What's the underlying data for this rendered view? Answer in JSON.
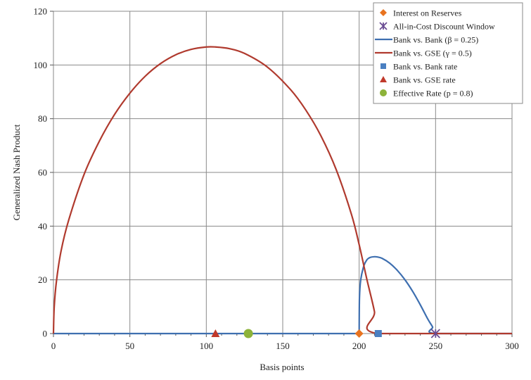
{
  "chart_data": {
    "type": "line",
    "title": "",
    "xlabel": "Basis points",
    "ylabel": "Generalized Nash Product",
    "xlim": [
      0,
      300
    ],
    "ylim": [
      0,
      120
    ],
    "x_ticks": [
      "0",
      "50",
      "100",
      "150",
      "200",
      "250",
      "300"
    ],
    "y_ticks": [
      "0",
      "20",
      "40",
      "60",
      "80",
      "100",
      "120"
    ],
    "grid": true,
    "legend_position": "top-right",
    "series": [
      {
        "name": "Interest on Reserves",
        "kind": "marker",
        "marker": "diamond",
        "color": "#E8731F",
        "points": [
          [
            200,
            0
          ]
        ]
      },
      {
        "name": "All-in-Cost Discount Window",
        "kind": "marker",
        "marker": "star",
        "color": "#6A4C93",
        "points": [
          [
            250,
            0
          ]
        ]
      },
      {
        "name": "Bank vs. Bank (β = 0.25)",
        "kind": "line",
        "color": "#3E6FB0",
        "points": [
          [
            0,
            0
          ],
          [
            200,
            0
          ],
          [
            200,
            0
          ],
          [
            200.2,
            13.2
          ],
          [
            201,
            19.9
          ],
          [
            203,
            25.1
          ],
          [
            205,
            27.4
          ],
          [
            207,
            28.3
          ],
          [
            210,
            28.6
          ],
          [
            212,
            28.5
          ],
          [
            215,
            28.0
          ],
          [
            220,
            26.2
          ],
          [
            225,
            23.5
          ],
          [
            230,
            20.0
          ],
          [
            235,
            15.7
          ],
          [
            240,
            10.7
          ],
          [
            245,
            5.3
          ],
          [
            248,
            2.5
          ],
          [
            250,
            0
          ],
          [
            300,
            0
          ]
        ]
      },
      {
        "name": "Bank vs. GSE (γ = 0.5)",
        "kind": "line",
        "color": "#B03A2E",
        "points": [
          [
            0,
            0
          ],
          [
            0.5,
            9.9
          ],
          [
            2,
            19.7
          ],
          [
            5,
            30.8
          ],
          [
            10,
            42.3
          ],
          [
            20,
            59.2
          ],
          [
            30,
            71.6
          ],
          [
            40,
            81.6
          ],
          [
            50,
            89.5
          ],
          [
            60,
            95.8
          ],
          [
            70,
            100.5
          ],
          [
            80,
            103.8
          ],
          [
            90,
            105.8
          ],
          [
            100,
            106.7
          ],
          [
            106,
            106.7
          ],
          [
            115,
            106.1
          ],
          [
            125,
            104.3
          ],
          [
            140,
            99.2
          ],
          [
            155,
            90.9
          ],
          [
            165,
            83.3
          ],
          [
            175,
            73.6
          ],
          [
            185,
            61.0
          ],
          [
            195,
            44.3
          ],
          [
            200,
            33.1
          ],
          [
            205,
            20.3
          ],
          [
            210,
            8.2
          ],
          [
            212,
            0
          ],
          [
            300,
            0
          ]
        ]
      },
      {
        "name": "Bank vs. Bank rate",
        "kind": "marker",
        "marker": "square",
        "color": "#4A7FC1",
        "points": [
          [
            212.5,
            0
          ]
        ]
      },
      {
        "name": "Bank vs. GSE rate",
        "kind": "marker",
        "marker": "triangle",
        "color": "#C0392B",
        "points": [
          [
            106,
            0
          ]
        ]
      },
      {
        "name": "Effective Rate (p = 0.8)",
        "kind": "marker",
        "marker": "circle",
        "color": "#8DB33A",
        "points": [
          [
            127.5,
            0
          ]
        ]
      }
    ]
  }
}
